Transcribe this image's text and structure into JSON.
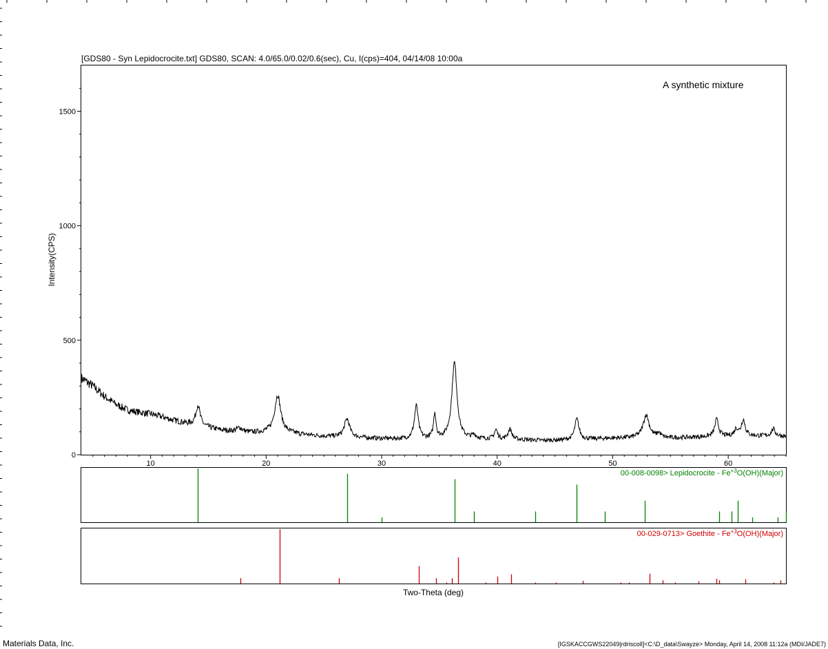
{
  "header": "[GDS80 - Syn Lepidocrocite.txt] GDS80, SCAN: 4.0/65.0/0.02/0.6(sec), Cu, I(cps)=404, 04/14/08 10:00a",
  "annotation": "A synthetic mixture",
  "footer_left": "Materials Data, Inc.",
  "footer_right": "[IGSKACCGWS22049|rdriscoll]<C:\\D_data\\Swayze> Monday, April 14, 2008 11:12a (MDI/JADE7)",
  "chart_data": {
    "type": "line",
    "xlabel": "Two-Theta (deg)",
    "ylabel": "Intensity(CPS)",
    "xlim": [
      4,
      65
    ],
    "ylim": [
      0,
      1700
    ],
    "x_ticks": [
      10,
      20,
      30,
      40,
      50,
      60
    ],
    "y_ticks": [
      0,
      500,
      1000,
      1500
    ],
    "grid": false,
    "trace_color": "#000000",
    "background_points": [
      [
        4,
        335
      ],
      [
        5,
        300
      ],
      [
        6,
        255
      ],
      [
        7,
        220
      ],
      [
        8,
        195
      ],
      [
        9,
        185
      ],
      [
        10,
        178
      ],
      [
        11,
        165
      ],
      [
        12,
        150
      ],
      [
        13,
        138
      ],
      [
        14,
        128
      ],
      [
        15,
        118
      ],
      [
        16,
        108
      ],
      [
        17,
        102
      ],
      [
        18,
        98
      ],
      [
        19,
        96
      ],
      [
        20,
        97
      ],
      [
        22,
        93
      ],
      [
        23,
        88
      ],
      [
        24,
        84
      ],
      [
        25,
        80
      ],
      [
        26,
        78
      ],
      [
        27,
        76
      ],
      [
        28,
        74
      ],
      [
        30,
        70
      ],
      [
        32,
        68
      ],
      [
        34,
        68
      ],
      [
        36,
        68
      ],
      [
        38,
        68
      ],
      [
        40,
        67
      ],
      [
        42,
        65
      ],
      [
        44,
        62
      ],
      [
        46,
        64
      ],
      [
        48,
        68
      ],
      [
        50,
        72
      ],
      [
        52,
        74
      ],
      [
        54,
        72
      ],
      [
        56,
        74
      ],
      [
        58,
        78
      ],
      [
        60,
        80
      ],
      [
        62,
        82
      ],
      [
        64,
        82
      ],
      [
        65,
        80
      ]
    ],
    "peaks": [
      {
        "x": 14.1,
        "height": 90,
        "width": 0.22
      },
      {
        "x": 17.7,
        "height": 18,
        "width": 0.3
      },
      {
        "x": 21.0,
        "height": 165,
        "width": 0.32
      },
      {
        "x": 27.0,
        "height": 80,
        "width": 0.28
      },
      {
        "x": 33.0,
        "height": 145,
        "width": 0.2
      },
      {
        "x": 34.6,
        "height": 110,
        "width": 0.13
      },
      {
        "x": 36.3,
        "height": 335,
        "width": 0.27
      },
      {
        "x": 38.0,
        "height": 15,
        "width": 0.2
      },
      {
        "x": 39.9,
        "height": 40,
        "width": 0.17
      },
      {
        "x": 41.1,
        "height": 45,
        "width": 0.2
      },
      {
        "x": 46.9,
        "height": 90,
        "width": 0.22
      },
      {
        "x": 52.9,
        "height": 100,
        "width": 0.32
      },
      {
        "x": 54.0,
        "height": 20,
        "width": 0.2
      },
      {
        "x": 59.0,
        "height": 75,
        "width": 0.2
      },
      {
        "x": 60.7,
        "height": 30,
        "width": 0.2
      },
      {
        "x": 61.3,
        "height": 70,
        "width": 0.2
      },
      {
        "x": 63.9,
        "height": 30,
        "width": 0.2
      }
    ],
    "reference_patterns": [
      {
        "name": "00-008-0098> Lepidocrocite - Fe",
        "superscript": "+3",
        "name_suffix": "O(OH)(Major)",
        "color": "#008000",
        "sticks": [
          [
            14.1,
            100
          ],
          [
            27.0,
            90
          ],
          [
            30.0,
            9
          ],
          [
            36.3,
            80
          ],
          [
            38.0,
            20
          ],
          [
            43.3,
            20
          ],
          [
            46.9,
            70
          ],
          [
            49.3,
            20
          ],
          [
            52.8,
            40
          ],
          [
            59.2,
            20
          ],
          [
            60.3,
            20
          ],
          [
            60.8,
            40
          ],
          [
            62.1,
            9
          ],
          [
            64.3,
            9
          ],
          [
            65.0,
            20
          ]
        ]
      },
      {
        "name": "00-029-0713> Goethite - Fe",
        "superscript": "+3",
        "name_suffix": "O(OH)(Major)",
        "color": "#cc0000",
        "sticks": [
          [
            17.8,
            10
          ],
          [
            21.2,
            100
          ],
          [
            26.3,
            10
          ],
          [
            33.2,
            32
          ],
          [
            34.7,
            10
          ],
          [
            35.6,
            2
          ],
          [
            36.1,
            10
          ],
          [
            36.6,
            48
          ],
          [
            39.0,
            2
          ],
          [
            40.0,
            13
          ],
          [
            41.2,
            17
          ],
          [
            43.3,
            2
          ],
          [
            45.1,
            2
          ],
          [
            47.4,
            5
          ],
          [
            50.7,
            2
          ],
          [
            51.4,
            2
          ],
          [
            53.2,
            18
          ],
          [
            54.3,
            6
          ],
          [
            55.4,
            2
          ],
          [
            57.4,
            4
          ],
          [
            59.0,
            9
          ],
          [
            59.2,
            6
          ],
          [
            61.5,
            8
          ],
          [
            63.9,
            2
          ],
          [
            64.5,
            6
          ]
        ]
      }
    ]
  }
}
